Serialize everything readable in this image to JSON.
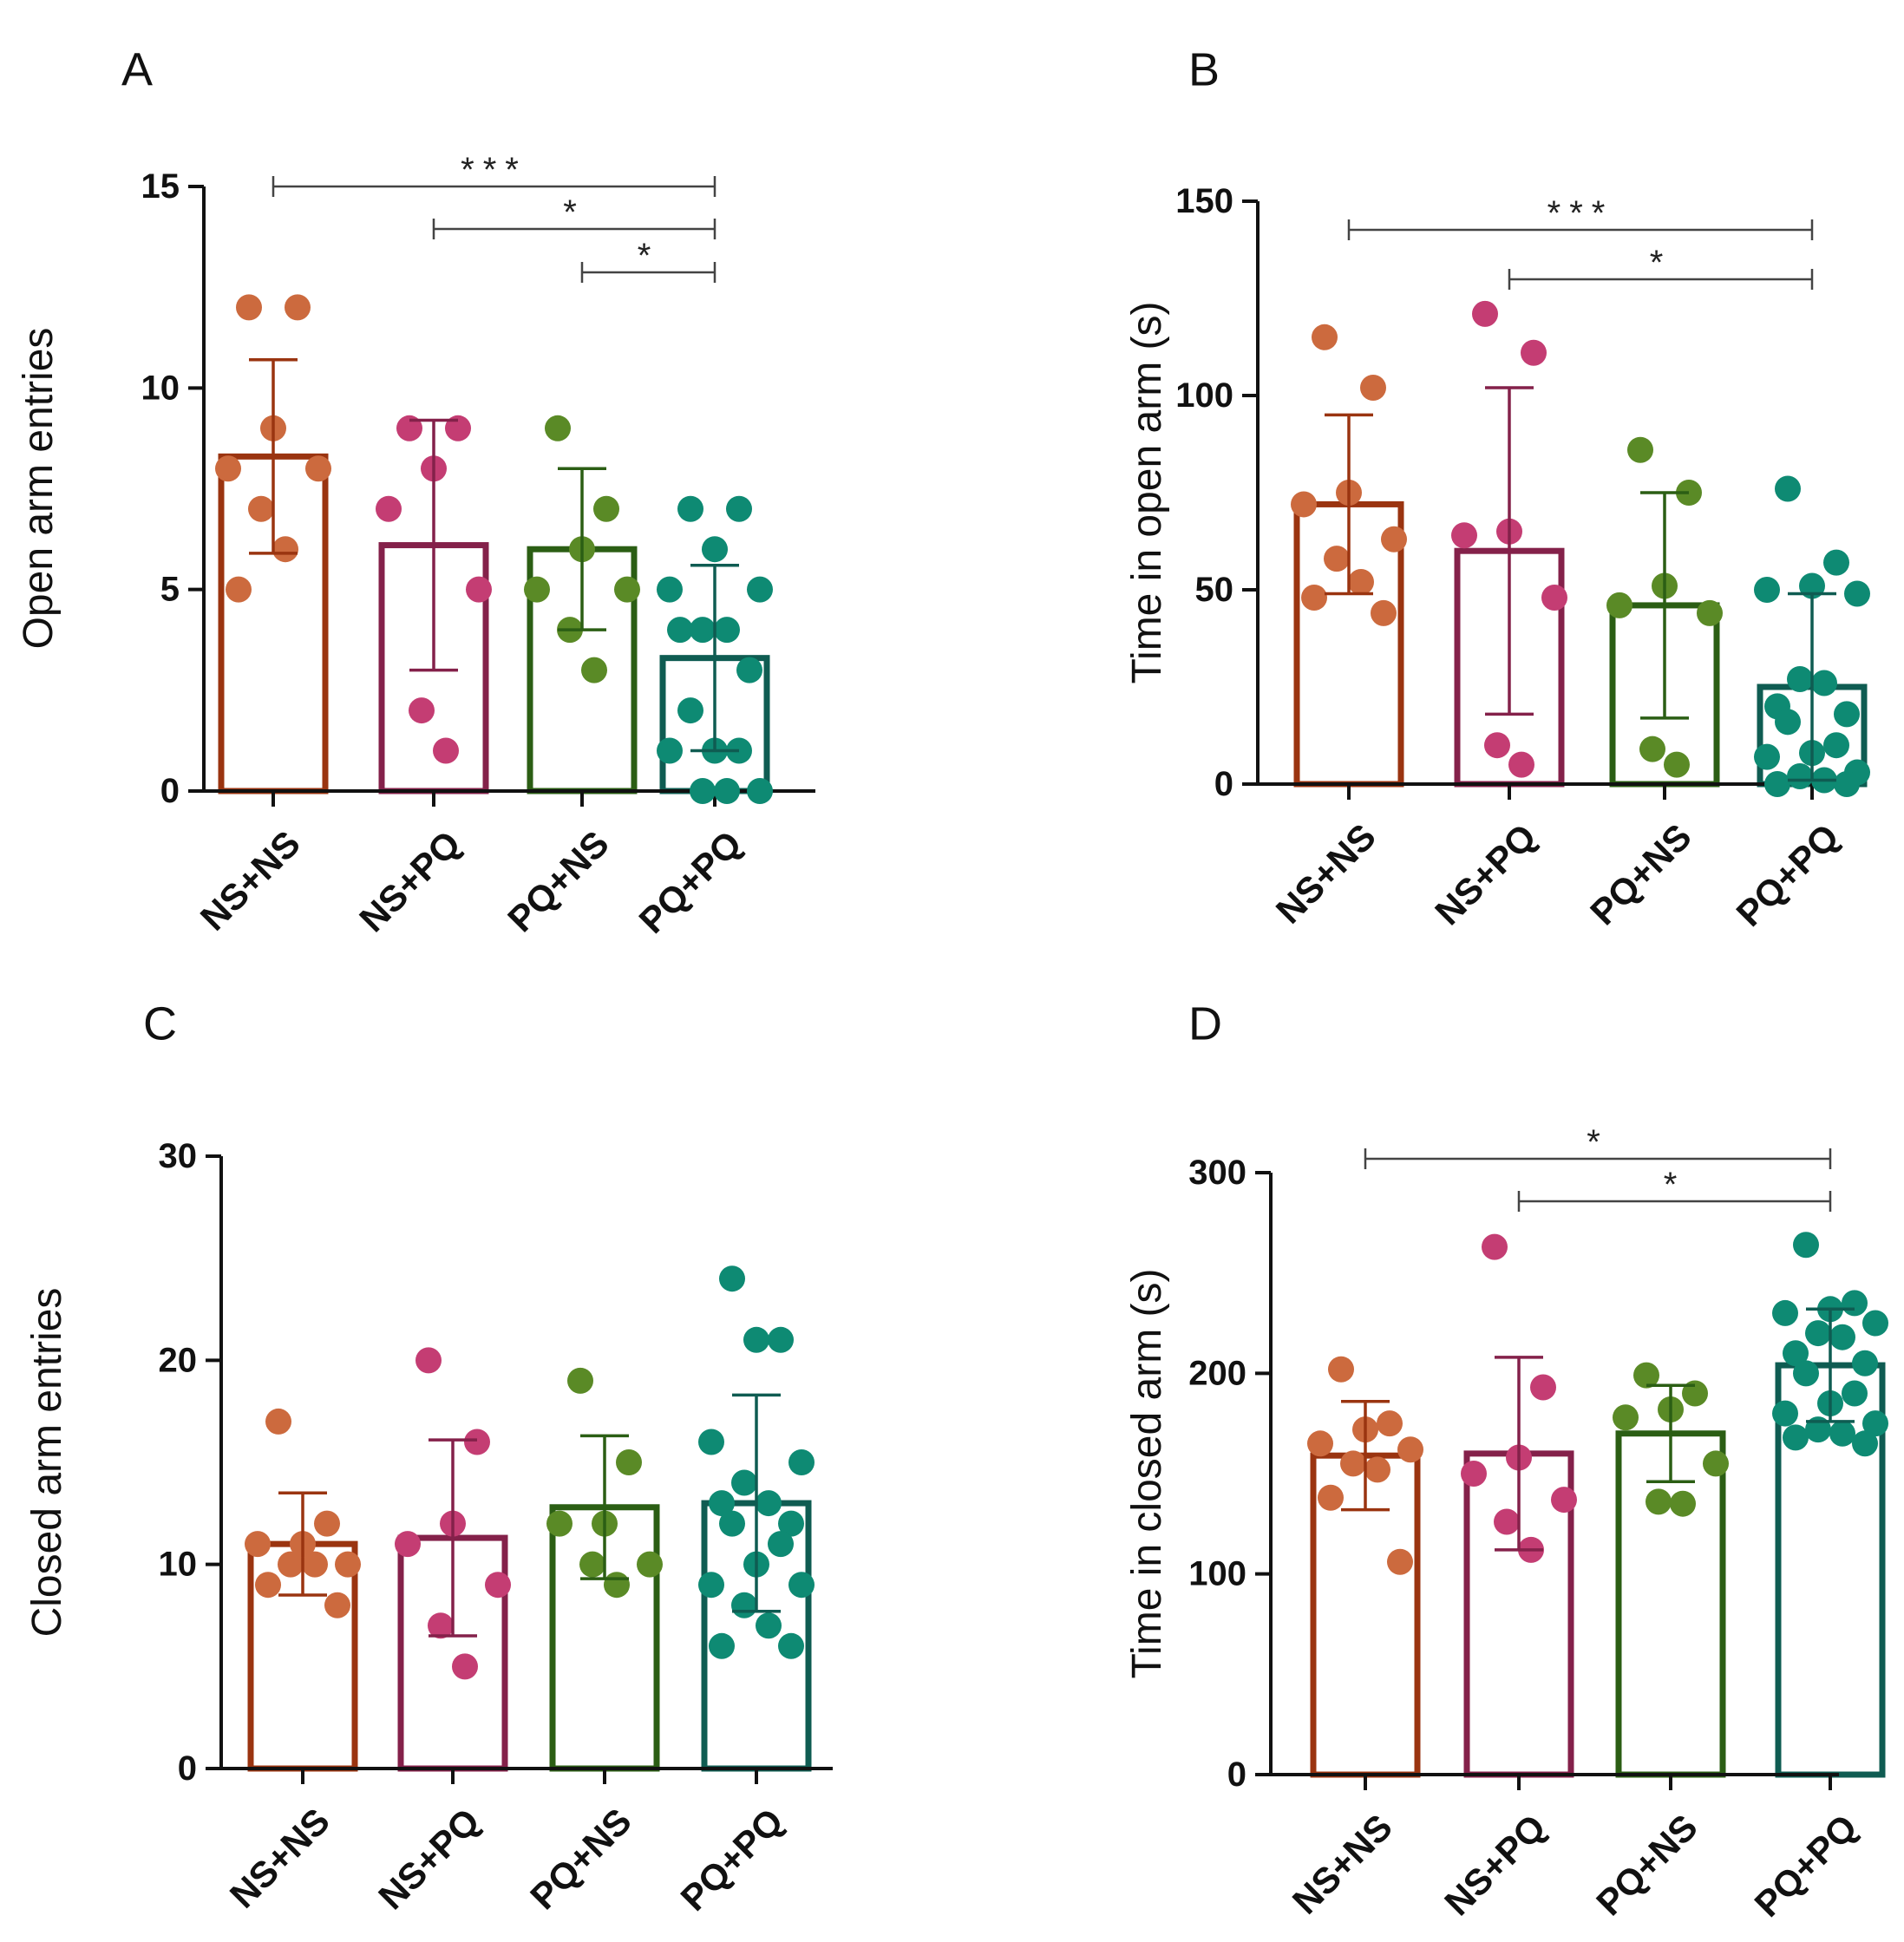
{
  "figure": {
    "background": "#ffffff"
  },
  "colors": {
    "NS+NS": {
      "bar": "#9a3410",
      "dot": "#cc6a3e"
    },
    "NS+PQ": {
      "bar": "#84214a",
      "dot": "#c43d73"
    },
    "PQ+NS": {
      "bar": "#2b5e14",
      "dot": "#5a8a26"
    },
    "PQ+PQ": {
      "bar": "#0f5c52",
      "dot": "#0e8a73"
    }
  },
  "chart_data": [
    {
      "panel": "A",
      "type": "bar",
      "title": "",
      "xlabel": "",
      "ylabel": "Open arm entries",
      "ylim": [
        0,
        15
      ],
      "yticks": [
        0,
        5,
        10,
        15
      ],
      "categories": [
        "NS+NS",
        "NS+PQ",
        "PQ+NS",
        "PQ+PQ"
      ],
      "means": [
        8.3,
        6.1,
        6.0,
        3.3
      ],
      "sd": [
        2.4,
        3.1,
        2.0,
        2.3
      ],
      "points": [
        [
          12,
          12,
          9,
          8,
          8,
          7,
          6,
          5
        ],
        [
          9,
          9,
          8,
          7,
          5,
          2,
          1
        ],
        [
          9,
          7,
          6,
          5,
          5,
          4,
          3
        ],
        [
          7,
          7,
          6,
          5,
          5,
          4,
          4,
          4,
          3,
          2,
          1,
          1,
          1,
          0,
          0,
          0
        ]
      ],
      "significance": [
        {
          "from": "NS+NS",
          "to": "PQ+PQ",
          "label": "***"
        },
        {
          "from": "NS+PQ",
          "to": "PQ+PQ",
          "label": "*"
        },
        {
          "from": "PQ+NS",
          "to": "PQ+PQ",
          "label": "*"
        }
      ]
    },
    {
      "panel": "B",
      "type": "bar",
      "title": "",
      "xlabel": "",
      "ylabel": "Time in open arm (s)",
      "ylim": [
        0,
        150
      ],
      "yticks": [
        0,
        50,
        100,
        150
      ],
      "categories": [
        "NS+NS",
        "NS+PQ",
        "PQ+NS",
        "PQ+PQ"
      ],
      "means": [
        72,
        60,
        46,
        25
      ],
      "sd": [
        23,
        42,
        29,
        24
      ],
      "points": [
        [
          115,
          102,
          75,
          72,
          63,
          58,
          52,
          48,
          44
        ],
        [
          121,
          111,
          65,
          64,
          48,
          10,
          5
        ],
        [
          86,
          75,
          51,
          46,
          44,
          9,
          5
        ],
        [
          76,
          57,
          51,
          50,
          49,
          27,
          26,
          20,
          18,
          16,
          10,
          8,
          7,
          3,
          2,
          1,
          0,
          0
        ]
      ],
      "significance": [
        {
          "from": "NS+NS",
          "to": "PQ+PQ",
          "label": "***"
        },
        {
          "from": "NS+PQ",
          "to": "PQ+PQ",
          "label": "*"
        }
      ]
    },
    {
      "panel": "C",
      "type": "bar",
      "title": "",
      "xlabel": "",
      "ylabel": "Closed arm entries",
      "ylim": [
        0,
        30
      ],
      "yticks": [
        0,
        10,
        20,
        30
      ],
      "categories": [
        "NS+NS",
        "NS+PQ",
        "PQ+NS",
        "PQ+PQ"
      ],
      "means": [
        11,
        11.3,
        12.8,
        13.0
      ],
      "sd": [
        2.5,
        4.8,
        3.5,
        5.3
      ],
      "points": [
        [
          17,
          12,
          11,
          11,
          10,
          10,
          10,
          9,
          8
        ],
        [
          20,
          16,
          12,
          11,
          9,
          7,
          5
        ],
        [
          19,
          15,
          12,
          12,
          10,
          10,
          9
        ],
        [
          24,
          21,
          21,
          16,
          15,
          14,
          13,
          13,
          12,
          12,
          11,
          10,
          9,
          9,
          8,
          7,
          6,
          6
        ]
      ],
      "significance": []
    },
    {
      "panel": "D",
      "type": "bar",
      "title": "",
      "xlabel": "",
      "ylabel": "Time in closed arm (s)",
      "ylim": [
        0,
        300
      ],
      "yticks": [
        0,
        100,
        200,
        300
      ],
      "categories": [
        "NS+NS",
        "NS+PQ",
        "PQ+NS",
        "PQ+PQ"
      ],
      "means": [
        159,
        160,
        170,
        204
      ],
      "sd": [
        27,
        48,
        24,
        28
      ],
      "points": [
        [
          202,
          175,
          172,
          165,
          162,
          155,
          152,
          138,
          106
        ],
        [
          263,
          193,
          158,
          150,
          137,
          126,
          112
        ],
        [
          199,
          190,
          182,
          178,
          155,
          136,
          135
        ],
        [
          264,
          235,
          232,
          230,
          225,
          220,
          218,
          210,
          205,
          200,
          190,
          185,
          180,
          175,
          172,
          170,
          168,
          165
        ]
      ],
      "significance": [
        {
          "from": "NS+NS",
          "to": "PQ+PQ",
          "label": "*"
        },
        {
          "from": "NS+PQ",
          "to": "PQ+PQ",
          "label": "*"
        }
      ]
    }
  ]
}
